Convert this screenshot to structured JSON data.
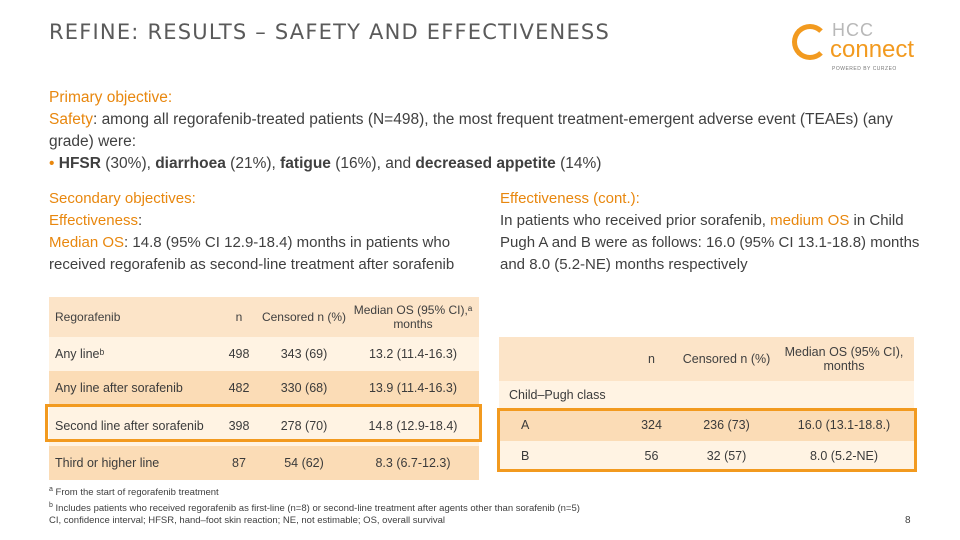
{
  "title": "REFINE: RESULTS – SAFETY AND EFFECTIVENESS",
  "logo": {
    "hcc": "HCC",
    "connect": "connect",
    "powered": "POWERED BY CURZEO"
  },
  "primary": {
    "heading": "Primary objective:",
    "safety_label": "Safety",
    "safety_text": ": among all regorafenib-treated patients (N=498), the most frequent treatment-emergent adverse event (TEAEs) (any grade) were:",
    "bullet": "•",
    "hfsr": "HFSR",
    "hfsr_pct": " (30%), ",
    "diarrhoea": "diarrhoea",
    "diarrhoea_pct": " (21%), ",
    "fatigue": "fatigue",
    "fatigue_pct": " (16%), and ",
    "appetite": "decreased appetite",
    "appetite_pct": " (14%)"
  },
  "secondary": {
    "heading": "Secondary objectives:",
    "eff_label": "Effectiveness",
    "eff_colon": ":",
    "os_label": "Median OS",
    "os_text": ": 14.8 (95% CI 12.9-18.4) months in patients who received regorafenib as second-line treatment after sorafenib"
  },
  "eff_cont": {
    "heading": "Effectiveness (cont.):",
    "text1": "In patients who received prior sorafenib, ",
    "medium_os": "medium OS",
    "text2": " in Child Pugh A and B were as follows: 16.0 (95% CI 13.1-18.8) months and 8.0 (5.2-NE) months respectively"
  },
  "table_left": {
    "headers": [
      "Regorafenib",
      "n",
      "Censored n (%)",
      "Median OS (95% CI),ᵃ months"
    ],
    "rows": [
      {
        "label": "Any lineᵇ",
        "n": "498",
        "censored": "343 (69)",
        "median": "13.2 (11.4-16.3)"
      },
      {
        "label": "Any line after sorafenib",
        "n": "482",
        "censored": "330 (68)",
        "median": "13.9 (11.4-16.3)"
      },
      {
        "label": "Second line after sorafenib",
        "n": "398",
        "censored": "278 (70)",
        "median": "14.8 (12.9-18.4)"
      },
      {
        "label": "Third or higher line",
        "n": "87",
        "censored": "54 (62)",
        "median": "8.3 (6.7-12.3)"
      }
    ]
  },
  "table_right": {
    "headers": [
      "",
      "n",
      "Censored n (%)",
      "Median OS (95% CI), months"
    ],
    "group": "Child–Pugh class",
    "rows": [
      {
        "label": "A",
        "n": "324",
        "censored": "236 (73)",
        "median": "16.0 (13.1-18.8.)"
      },
      {
        "label": "B",
        "n": "56",
        "censored": "32 (57)",
        "median": "8.0 (5.2-NE)"
      }
    ]
  },
  "footnotes": {
    "a_sup": "a",
    "a": " From the start of regorafenib treatment",
    "b_sup": "b",
    "b": " Includes patients who received regorafenib as first-line (n=8) or second-line treatment after agents other than sorafenib (n=5)",
    "abbr": "CI, confidence interval; HFSR, hand–foot skin reaction; NE, not estimable; OS, overall survival"
  },
  "page_number": "8",
  "colors": {
    "accent": "#f29a1f",
    "header_bg": "#fce4c8",
    "row_dark": "#fbdcb6",
    "row_light": "#fff3e3"
  }
}
